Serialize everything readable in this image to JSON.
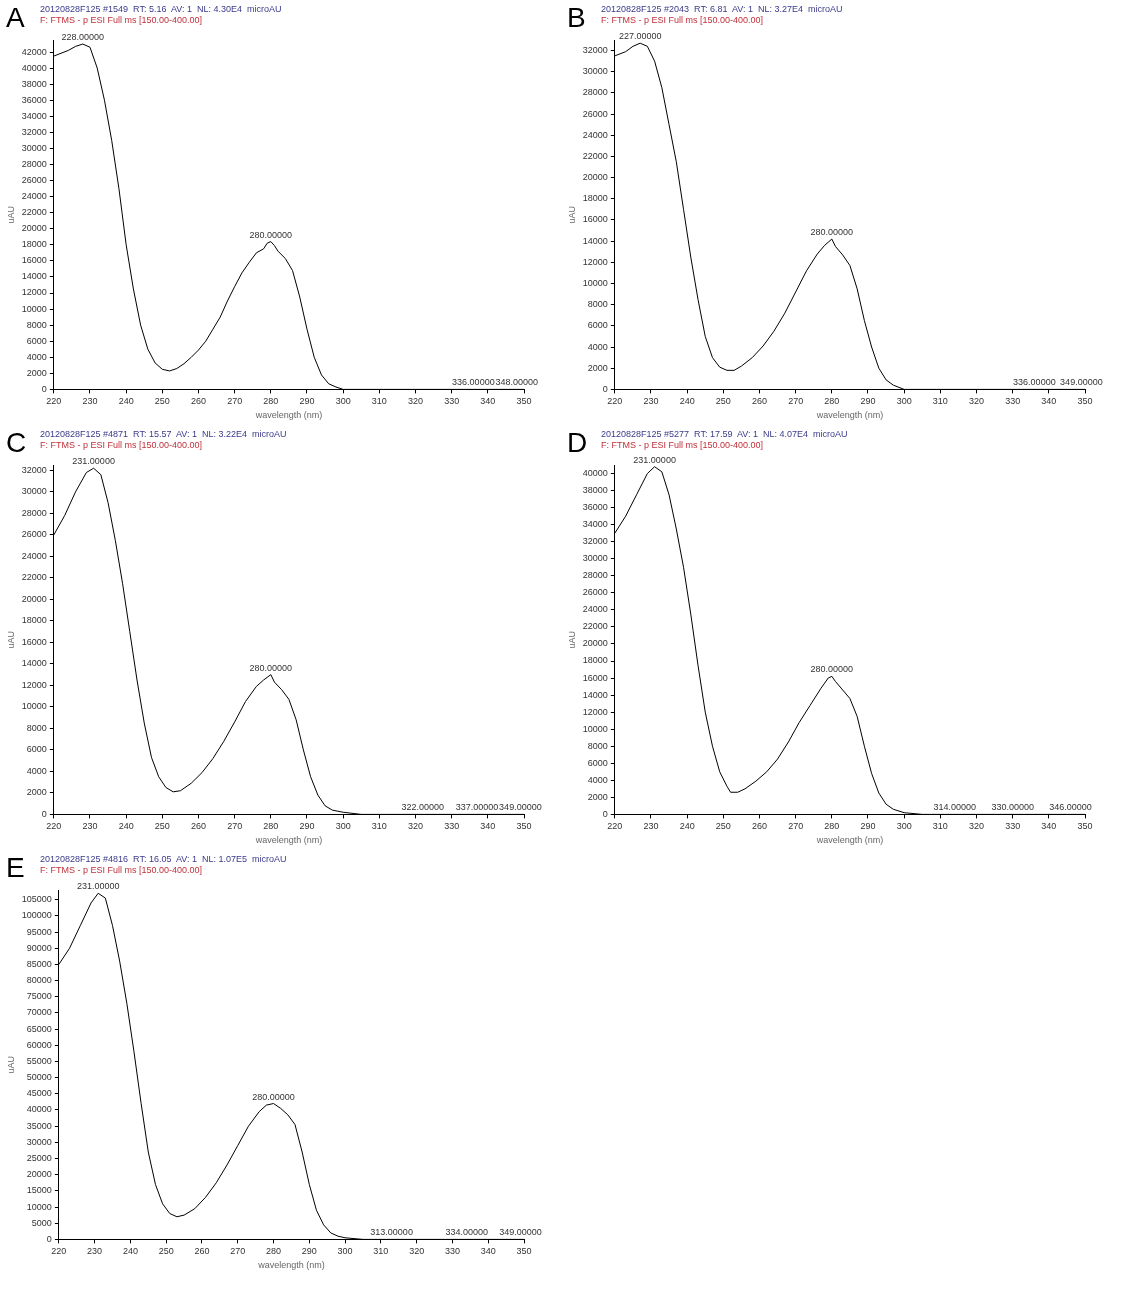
{
  "chart_data": [
    {
      "type": "line",
      "title": "20120828F125 #1549  RT: 5.16  AV: 1  NL: 4.30E4  microAU",
      "subtitle": "F: FTMS - p ESI Full ms [150.00-400.00]",
      "xlabel": "wavelength (nm)",
      "ylabel": "uAU",
      "grid": false,
      "marker": "none",
      "line_style": "solid",
      "xlim": [
        220,
        350
      ],
      "xticks": [
        220,
        230,
        240,
        250,
        260,
        270,
        280,
        290,
        300,
        310,
        320,
        330,
        340,
        350
      ],
      "ylim": [
        0,
        43500
      ],
      "yticks": [
        0,
        2000,
        4000,
        6000,
        8000,
        10000,
        12000,
        14000,
        16000,
        18000,
        20000,
        22000,
        24000,
        26000,
        28000,
        30000,
        32000,
        34000,
        36000,
        38000,
        40000,
        42000
      ],
      "annotations": [
        "A",
        {
          "text": "228.00000",
          "x": 228,
          "y": 43000
        },
        {
          "text": "280.00000",
          "x": 280,
          "y": 18400
        },
        {
          "text": "336.00000",
          "x": 336,
          "y": 0
        },
        {
          "text": "348.00000",
          "x": 348,
          "y": 0
        }
      ],
      "series": [
        {
          "color": "#000000",
          "x": [
            220,
            224,
            226,
            228,
            230,
            232,
            234,
            236,
            238,
            240,
            242,
            244,
            246,
            248,
            250,
            252,
            254,
            256,
            258,
            260,
            262,
            264,
            266,
            268,
            270,
            272,
            274,
            276,
            278,
            279,
            280,
            281,
            282,
            284,
            286,
            288,
            290,
            292,
            294,
            296,
            298,
            300,
            305,
            310,
            320,
            330,
            340,
            350
          ],
          "values": [
            41500,
            42200,
            42700,
            43000,
            42600,
            40000,
            36000,
            31000,
            25000,
            18000,
            12500,
            8000,
            5000,
            3300,
            2500,
            2300,
            2600,
            3200,
            4000,
            4900,
            6000,
            7500,
            9000,
            11000,
            12800,
            14500,
            15800,
            17000,
            17500,
            18200,
            18400,
            17900,
            17200,
            16300,
            14800,
            11500,
            7500,
            4000,
            1800,
            700,
            300,
            0,
            0,
            0,
            0,
            0,
            0,
            0
          ]
        }
      ]
    },
    {
      "type": "line",
      "title": "20120828F125 #2043  RT: 6.81  AV: 1  NL: 3.27E4  microAU",
      "subtitle": "F: FTMS - p ESI Full ms [150.00-400.00]",
      "xlabel": "wavelength (nm)",
      "ylabel": "uAU",
      "grid": false,
      "marker": "none",
      "line_style": "solid",
      "xlim": [
        220,
        350
      ],
      "xticks": [
        220,
        230,
        240,
        250,
        260,
        270,
        280,
        290,
        300,
        310,
        320,
        330,
        340,
        350
      ],
      "ylim": [
        0,
        33000
      ],
      "yticks": [
        0,
        2000,
        4000,
        6000,
        8000,
        10000,
        12000,
        14000,
        16000,
        18000,
        20000,
        22000,
        24000,
        26000,
        28000,
        30000,
        32000
      ],
      "annotations": [
        "B",
        {
          "text": "227.00000",
          "x": 227,
          "y": 32700
        },
        {
          "text": "280.00000",
          "x": 280,
          "y": 14200
        },
        {
          "text": "336.00000",
          "x": 336,
          "y": 0
        },
        {
          "text": "349.00000",
          "x": 349,
          "y": 0
        }
      ],
      "series": [
        {
          "color": "#000000",
          "x": [
            220,
            223,
            225,
            227,
            229,
            231,
            233,
            235,
            237,
            239,
            241,
            243,
            245,
            247,
            249,
            251,
            253,
            255,
            258,
            261,
            264,
            267,
            270,
            273,
            276,
            278,
            280,
            281,
            283,
            285,
            287,
            289,
            291,
            293,
            295,
            297,
            300,
            305,
            320,
            336,
            349,
            350
          ],
          "values": [
            31500,
            31900,
            32400,
            32700,
            32400,
            31000,
            28500,
            25000,
            21500,
            17000,
            12500,
            8500,
            5000,
            3000,
            2100,
            1800,
            1800,
            2200,
            3000,
            4100,
            5500,
            7200,
            9200,
            11200,
            12800,
            13600,
            14200,
            13500,
            12700,
            11700,
            9500,
            6500,
            4000,
            2000,
            900,
            400,
            0,
            0,
            0,
            0,
            0,
            0
          ]
        }
      ]
    },
    {
      "type": "line",
      "title": "20120828F125 #4871  RT: 15.57  AV: 1  NL: 3.22E4  microAU",
      "subtitle": "F: FTMS - p ESI Full ms [150.00-400.00]",
      "xlabel": "wavelength (nm)",
      "ylabel": "uAU",
      "grid": false,
      "marker": "none",
      "line_style": "solid",
      "xlim": [
        220,
        350
      ],
      "xticks": [
        220,
        230,
        240,
        250,
        260,
        270,
        280,
        290,
        300,
        310,
        320,
        330,
        340,
        350
      ],
      "ylim": [
        0,
        32500
      ],
      "yticks": [
        0,
        2000,
        4000,
        6000,
        8000,
        10000,
        12000,
        14000,
        16000,
        18000,
        20000,
        22000,
        24000,
        26000,
        28000,
        30000,
        32000
      ],
      "annotations": [
        "C",
        {
          "text": "231.00000",
          "x": 231,
          "y": 32200
        },
        {
          "text": "280.00000",
          "x": 280,
          "y": 13000
        },
        {
          "text": "322.00000",
          "x": 322,
          "y": 0
        },
        {
          "text": "337.00000",
          "x": 337,
          "y": 0
        },
        {
          "text": "349.00000",
          "x": 349,
          "y": 0
        }
      ],
      "series": [
        {
          "color": "#000000",
          "x": [
            220,
            223,
            226,
            229,
            231,
            233,
            235,
            237,
            239,
            241,
            243,
            245,
            247,
            249,
            251,
            253,
            255,
            258,
            261,
            264,
            267,
            270,
            273,
            276,
            278,
            280,
            281,
            283,
            285,
            287,
            289,
            291,
            293,
            295,
            297,
            300,
            305,
            322,
            337,
            349,
            350
          ],
          "values": [
            26000,
            27800,
            30000,
            31800,
            32200,
            31600,
            29000,
            25500,
            21500,
            17000,
            12500,
            8500,
            5300,
            3500,
            2500,
            2100,
            2200,
            2900,
            3900,
            5200,
            6800,
            8600,
            10500,
            11900,
            12500,
            13000,
            12300,
            11600,
            10700,
            8800,
            6000,
            3500,
            1800,
            800,
            400,
            200,
            0,
            0,
            0,
            0,
            0
          ]
        }
      ]
    },
    {
      "type": "line",
      "title": "20120828F125 #5277  RT: 17.59  AV: 1  NL: 4.07E4  microAU",
      "subtitle": "F: FTMS - p ESI Full ms [150.00-400.00]",
      "xlabel": "wavelength (nm)",
      "ylabel": "uAU",
      "grid": false,
      "marker": "none",
      "line_style": "solid",
      "xlim": [
        220,
        350
      ],
      "xticks": [
        220,
        230,
        240,
        250,
        260,
        270,
        280,
        290,
        300,
        310,
        320,
        330,
        340,
        350
      ],
      "ylim": [
        0,
        41000
      ],
      "yticks": [
        0,
        2000,
        4000,
        6000,
        8000,
        10000,
        12000,
        14000,
        16000,
        18000,
        20000,
        22000,
        24000,
        26000,
        28000,
        30000,
        32000,
        34000,
        36000,
        38000,
        40000
      ],
      "annotations": [
        "D",
        {
          "text": "231.00000",
          "x": 231,
          "y": 40800
        },
        {
          "text": "280.00000",
          "x": 280,
          "y": 16200
        },
        {
          "text": "314.00000",
          "x": 314,
          "y": 0
        },
        {
          "text": "330.00000",
          "x": 330,
          "y": 0
        },
        {
          "text": "346.00000",
          "x": 346,
          "y": 0
        }
      ],
      "series": [
        {
          "color": "#000000",
          "x": [
            220,
            223,
            226,
            229,
            231,
            233,
            235,
            237,
            239,
            241,
            243,
            245,
            247,
            249,
            251,
            252,
            254,
            256,
            259,
            262,
            265,
            268,
            271,
            274,
            277,
            279,
            280,
            281,
            283,
            285,
            287,
            289,
            291,
            293,
            295,
            297,
            300,
            305,
            314,
            330,
            346,
            350
          ],
          "values": [
            33000,
            35000,
            37500,
            40000,
            40800,
            40200,
            37500,
            33500,
            29000,
            23500,
            17500,
            12000,
            8000,
            5000,
            3300,
            2600,
            2600,
            3000,
            3900,
            5000,
            6500,
            8500,
            10800,
            12800,
            14800,
            16000,
            16200,
            15600,
            14600,
            13600,
            11500,
            8000,
            4800,
            2500,
            1200,
            600,
            200,
            0,
            0,
            0,
            0,
            0
          ]
        }
      ]
    },
    {
      "type": "line",
      "title": "20120828F125 #4816  RT: 16.05  AV: 1  NL: 1.07E5  microAU",
      "subtitle": "F: FTMS - p ESI Full ms [150.00-400.00]",
      "xlabel": "wavelength (nm)",
      "ylabel": "uAU",
      "grid": false,
      "marker": "none",
      "line_style": "solid",
      "xlim": [
        220,
        350
      ],
      "xticks": [
        220,
        230,
        240,
        250,
        260,
        270,
        280,
        290,
        300,
        310,
        320,
        330,
        340,
        350
      ],
      "ylim": [
        0,
        108000
      ],
      "yticks": [
        0,
        5000,
        10000,
        15000,
        20000,
        25000,
        30000,
        35000,
        40000,
        45000,
        50000,
        55000,
        60000,
        65000,
        70000,
        75000,
        80000,
        85000,
        90000,
        95000,
        100000,
        105000
      ],
      "annotations": [
        "E",
        {
          "text": "231.00000",
          "x": 231,
          "y": 107000
        },
        {
          "text": "280.00000",
          "x": 280,
          "y": 42000
        },
        {
          "text": "313.00000",
          "x": 313,
          "y": 0
        },
        {
          "text": "334.00000",
          "x": 334,
          "y": 0
        },
        {
          "text": "349.00000",
          "x": 349,
          "y": 0
        }
      ],
      "series": [
        {
          "color": "#000000",
          "x": [
            220,
            223,
            226,
            229,
            231,
            233,
            235,
            237,
            239,
            241,
            243,
            245,
            247,
            249,
            251,
            253,
            255,
            258,
            261,
            264,
            267,
            270,
            273,
            276,
            278,
            280,
            282,
            284,
            286,
            288,
            290,
            292,
            294,
            296,
            298,
            300,
            305,
            313,
            320,
            334,
            349,
            350
          ],
          "values": [
            85000,
            90000,
            97000,
            104000,
            107000,
            105500,
            97000,
            86000,
            73000,
            58000,
            42000,
            27000,
            17000,
            11000,
            8000,
            7000,
            7500,
            9500,
            13000,
            17500,
            23000,
            29000,
            35000,
            39500,
            41500,
            42000,
            40500,
            38500,
            35500,
            27000,
            17000,
            9000,
            4500,
            2000,
            1000,
            500,
            0,
            0,
            0,
            0,
            0,
            0
          ]
        }
      ]
    }
  ]
}
